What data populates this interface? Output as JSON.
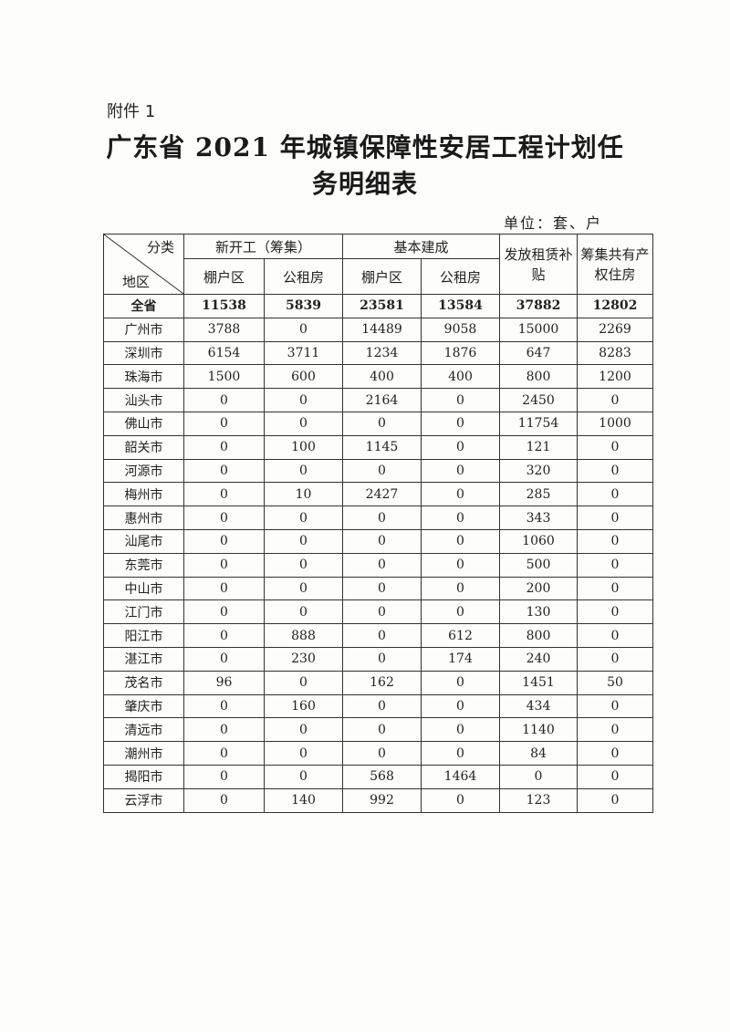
{
  "attachment_label": "附件 1",
  "title_line1": "广东省 2021 年城镇保障性安居工程计划任",
  "title_line2": "务明细表",
  "unit": "单位：套、户",
  "header": {
    "corner_top": "分类",
    "corner_bottom": "地区",
    "group_new_start": "新开工（筹集）",
    "group_completed": "基本建成",
    "rent_subsidy": "发放租赁补贴",
    "shared_ownership": "筹集共有产权住房",
    "shanty": "棚户区",
    "public_rental": "公租房"
  },
  "rows": [
    [
      "全省",
      "11538",
      "5839",
      "23581",
      "13584",
      "37882",
      "12802"
    ],
    [
      "广州市",
      "3788",
      "0",
      "14489",
      "9058",
      "15000",
      "2269"
    ],
    [
      "深圳市",
      "6154",
      "3711",
      "1234",
      "1876",
      "647",
      "8283"
    ],
    [
      "珠海市",
      "1500",
      "600",
      "400",
      "400",
      "800",
      "1200"
    ],
    [
      "汕头市",
      "0",
      "0",
      "2164",
      "0",
      "2450",
      "0"
    ],
    [
      "佛山市",
      "0",
      "0",
      "0",
      "0",
      "11754",
      "1000"
    ],
    [
      "韶关市",
      "0",
      "100",
      "1145",
      "0",
      "121",
      "0"
    ],
    [
      "河源市",
      "0",
      "0",
      "0",
      "0",
      "320",
      "0"
    ],
    [
      "梅州市",
      "0",
      "10",
      "2427",
      "0",
      "285",
      "0"
    ],
    [
      "惠州市",
      "0",
      "0",
      "0",
      "0",
      "343",
      "0"
    ],
    [
      "汕尾市",
      "0",
      "0",
      "0",
      "0",
      "1060",
      "0"
    ],
    [
      "东莞市",
      "0",
      "0",
      "0",
      "0",
      "500",
      "0"
    ],
    [
      "中山市",
      "0",
      "0",
      "0",
      "0",
      "200",
      "0"
    ],
    [
      "江门市",
      "0",
      "0",
      "0",
      "0",
      "130",
      "0"
    ],
    [
      "阳江市",
      "0",
      "888",
      "0",
      "612",
      "800",
      "0"
    ],
    [
      "湛江市",
      "0",
      "230",
      "0",
      "174",
      "240",
      "0"
    ],
    [
      "茂名市",
      "96",
      "0",
      "162",
      "0",
      "1451",
      "50"
    ],
    [
      "肇庆市",
      "0",
      "160",
      "0",
      "0",
      "434",
      "0"
    ],
    [
      "清远市",
      "0",
      "0",
      "0",
      "0",
      "1140",
      "0"
    ],
    [
      "潮州市",
      "0",
      "0",
      "0",
      "0",
      "84",
      "0"
    ],
    [
      "揭阳市",
      "0",
      "0",
      "568",
      "1464",
      "0",
      "0"
    ],
    [
      "云浮市",
      "0",
      "140",
      "992",
      "0",
      "123",
      "0"
    ]
  ]
}
